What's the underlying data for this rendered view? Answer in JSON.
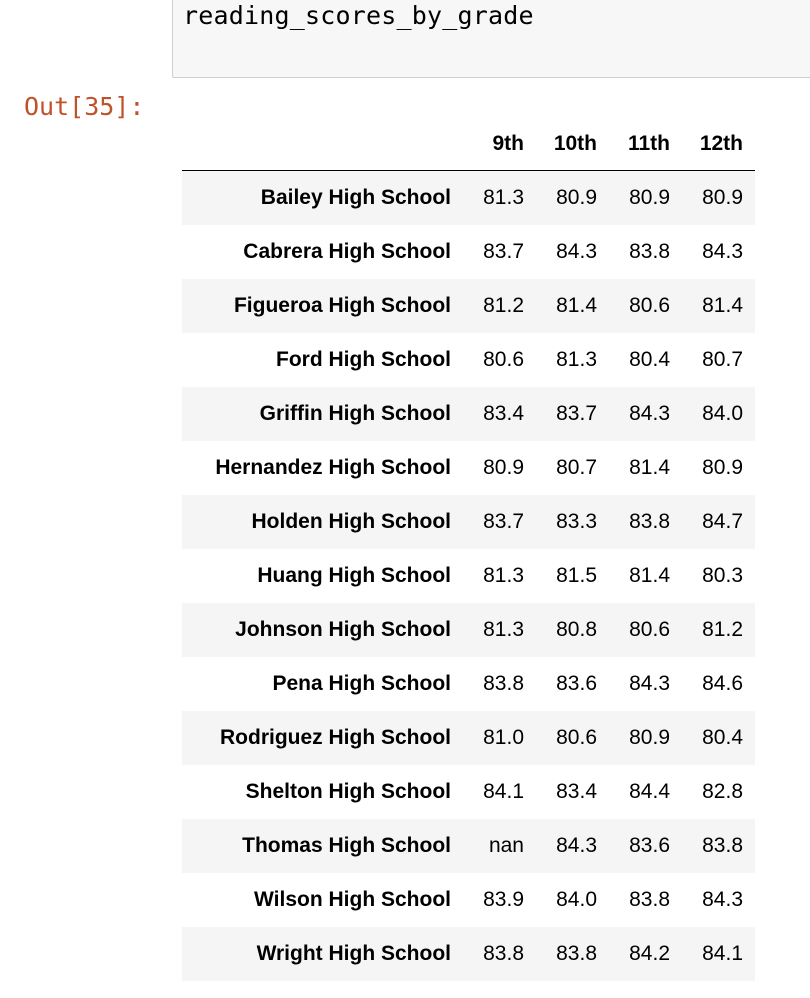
{
  "code_cell": {
    "source": "reading_scores_by_grade"
  },
  "output": {
    "prompt": "Out[35]:",
    "columns": [
      "9th",
      "10th",
      "11th",
      "12th"
    ],
    "rows": [
      {
        "school": "Bailey High School",
        "values": [
          "81.3",
          "80.9",
          "80.9",
          "80.9"
        ]
      },
      {
        "school": "Cabrera High School",
        "values": [
          "83.7",
          "84.3",
          "83.8",
          "84.3"
        ]
      },
      {
        "school": "Figueroa High School",
        "values": [
          "81.2",
          "81.4",
          "80.6",
          "81.4"
        ]
      },
      {
        "school": "Ford High School",
        "values": [
          "80.6",
          "81.3",
          "80.4",
          "80.7"
        ]
      },
      {
        "school": "Griffin High School",
        "values": [
          "83.4",
          "83.7",
          "84.3",
          "84.0"
        ]
      },
      {
        "school": "Hernandez High School",
        "values": [
          "80.9",
          "80.7",
          "81.4",
          "80.9"
        ]
      },
      {
        "school": "Holden High School",
        "values": [
          "83.7",
          "83.3",
          "83.8",
          "84.7"
        ]
      },
      {
        "school": "Huang High School",
        "values": [
          "81.3",
          "81.5",
          "81.4",
          "80.3"
        ]
      },
      {
        "school": "Johnson High School",
        "values": [
          "81.3",
          "80.8",
          "80.6",
          "81.2"
        ]
      },
      {
        "school": "Pena High School",
        "values": [
          "83.8",
          "83.6",
          "84.3",
          "84.6"
        ]
      },
      {
        "school": "Rodriguez High School",
        "values": [
          "81.0",
          "80.6",
          "80.9",
          "80.4"
        ]
      },
      {
        "school": "Shelton High School",
        "values": [
          "84.1",
          "83.4",
          "84.4",
          "82.8"
        ]
      },
      {
        "school": "Thomas High School",
        "values": [
          "nan",
          "84.3",
          "83.6",
          "83.8"
        ]
      },
      {
        "school": "Wilson High School",
        "values": [
          "83.9",
          "84.0",
          "83.8",
          "84.3"
        ]
      },
      {
        "school": "Wright High School",
        "values": [
          "83.8",
          "83.8",
          "84.2",
          "84.1"
        ]
      }
    ]
  }
}
